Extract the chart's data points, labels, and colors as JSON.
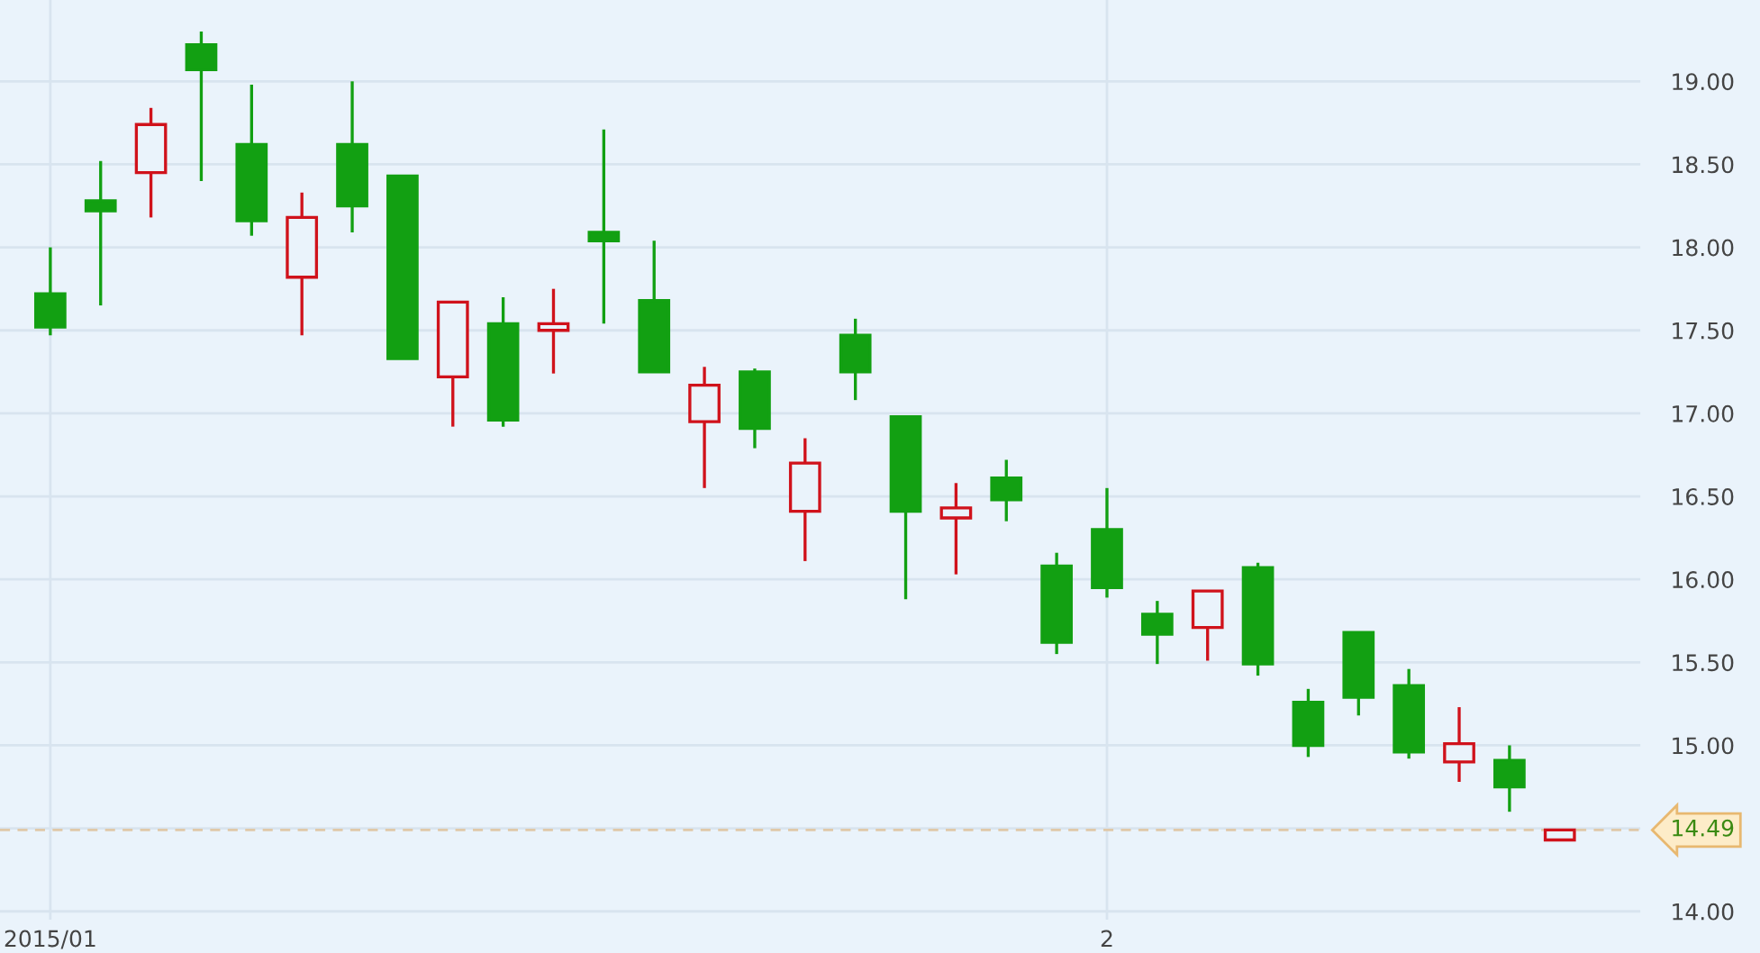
{
  "chart_data": {
    "type": "candlestick",
    "categories": [
      "2015/01",
      null,
      null,
      null,
      null,
      null,
      null,
      null,
      null,
      null,
      null,
      null,
      null,
      null,
      null,
      null,
      null,
      null,
      null,
      null,
      null,
      "2",
      null,
      null,
      null,
      null,
      null,
      null,
      null,
      null,
      null
    ],
    "ohlc": [
      [
        17.72,
        18.0,
        17.47,
        17.52
      ],
      [
        18.28,
        18.52,
        17.65,
        18.22
      ],
      [
        18.45,
        18.84,
        18.18,
        18.74
      ],
      [
        19.22,
        19.3,
        18.4,
        19.07
      ],
      [
        18.62,
        18.98,
        18.07,
        18.16
      ],
      [
        17.82,
        18.33,
        17.47,
        18.18
      ],
      [
        18.62,
        19.0,
        18.09,
        18.25
      ],
      [
        18.43,
        18.43,
        17.33,
        17.33
      ],
      [
        17.22,
        17.67,
        16.92,
        17.67
      ],
      [
        17.54,
        17.7,
        16.92,
        16.96
      ],
      [
        17.5,
        17.75,
        17.24,
        17.54
      ],
      [
        18.09,
        18.71,
        17.54,
        18.04
      ],
      [
        17.68,
        18.04,
        17.25,
        17.25
      ],
      [
        16.95,
        17.28,
        16.55,
        17.17
      ],
      [
        17.25,
        17.27,
        16.79,
        16.91
      ],
      [
        16.41,
        16.85,
        16.11,
        16.7
      ],
      [
        17.47,
        17.57,
        17.08,
        17.25
      ],
      [
        16.98,
        16.98,
        15.88,
        16.41
      ],
      [
        16.37,
        16.58,
        16.03,
        16.43
      ],
      [
        16.61,
        16.72,
        16.35,
        16.48
      ],
      [
        16.08,
        16.16,
        15.55,
        15.62
      ],
      [
        16.3,
        16.55,
        15.89,
        15.95
      ],
      [
        15.79,
        15.87,
        15.49,
        15.67
      ],
      [
        15.71,
        15.93,
        15.51,
        15.93
      ],
      [
        16.07,
        16.1,
        15.42,
        15.49
      ],
      [
        15.26,
        15.34,
        14.93,
        15.0
      ],
      [
        15.68,
        15.68,
        15.18,
        15.29
      ],
      [
        15.36,
        15.46,
        14.92,
        14.96
      ],
      [
        14.9,
        15.23,
        14.78,
        15.01
      ],
      [
        14.91,
        15.0,
        14.6,
        14.75
      ],
      [
        14.43,
        14.49,
        14.43,
        14.49
      ]
    ],
    "colors": [
      "#12a012",
      "#12a012",
      "#d0121b",
      "#12a012",
      "#12a012",
      "#d0121b",
      "#12a012",
      "#12a012",
      "#d0121b",
      "#12a012",
      "#d0121b",
      "#12a012",
      "#12a012",
      "#d0121b",
      "#12a012",
      "#d0121b",
      "#12a012",
      "#12a012",
      "#d0121b",
      "#12a012",
      "#12a012",
      "#12a012",
      "#12a012",
      "#d0121b",
      "#12a012",
      "#12a012",
      "#12a012",
      "#12a012",
      "#d0121b",
      "#12a012",
      "#d0121b"
    ],
    "ylim": [
      13.95,
      19.49
    ],
    "yticks": [
      {
        "value": 14,
        "label": "14.00"
      },
      {
        "value": 14.5,
        "label": null
      },
      {
        "value": 15,
        "label": "15.00"
      },
      {
        "value": 15.5,
        "label": "15.50"
      },
      {
        "value": 16,
        "label": "16.00"
      },
      {
        "value": 16.5,
        "label": "16.50"
      },
      {
        "value": 17,
        "label": "17.00"
      },
      {
        "value": 17.5,
        "label": "17.50"
      },
      {
        "value": 18,
        "label": "18.00"
      },
      {
        "value": 18.5,
        "label": "18.50"
      },
      {
        "value": 19,
        "label": "19.00"
      }
    ],
    "ref_lines": [
      {
        "axis": "y",
        "value": 14.49,
        "label": "14.49",
        "color": "#e0c8a8",
        "line_style": "dashed"
      }
    ],
    "grid": true
  }
}
